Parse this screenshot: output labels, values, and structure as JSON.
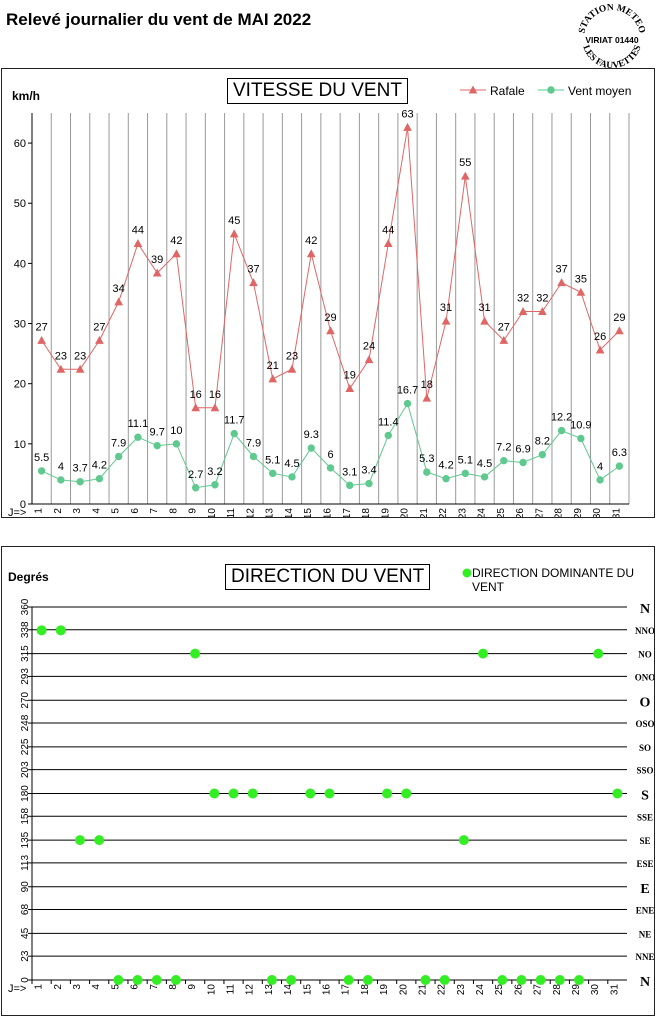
{
  "page_title": "Relevé journalier du vent de MAI 2022",
  "logo": {
    "lines": [
      "STATION METEO",
      "VIRIAT 01440",
      "LES FAUVETTES"
    ]
  },
  "colors": {
    "rafale": "#e06666",
    "moyen": "#5fc98f",
    "direction_point": "#33ee22",
    "grid": "#000000"
  },
  "chart_data": [
    {
      "type": "line",
      "title": "VITESSE DU VENT",
      "ylabel": "km/h",
      "xlabel": "J=>",
      "ylim": [
        0,
        65
      ],
      "yticks": [
        0,
        10,
        20,
        30,
        40,
        50,
        60
      ],
      "legend_placement": "top-right",
      "grid": "vertical",
      "categories": [
        "1",
        "2",
        "3",
        "4",
        "5",
        "6",
        "7",
        "8",
        "9",
        "10",
        "11",
        "12",
        "13",
        "14",
        "15",
        "16",
        "17",
        "18",
        "19",
        "20",
        "21",
        "22",
        "23",
        "24",
        "25",
        "26",
        "27",
        "28",
        "29",
        "30",
        "31"
      ],
      "series": [
        {
          "name": "Rafale",
          "marker": "triangle",
          "values": [
            27,
            23,
            23,
            27,
            34,
            44,
            39,
            42,
            16,
            16,
            45,
            37,
            21,
            23,
            42,
            29,
            19,
            24,
            44,
            63,
            18,
            31,
            55,
            31,
            27,
            32,
            32,
            37,
            35,
            26,
            29
          ],
          "plotted": [
            27.2,
            22.4,
            22.4,
            27.2,
            33.6,
            43.3,
            38.4,
            41.6,
            16.0,
            16.0,
            44.9,
            36.8,
            20.8,
            22.4,
            41.6,
            28.8,
            19.2,
            24.0,
            43.3,
            62.6,
            17.6,
            30.4,
            54.5,
            30.4,
            27.2,
            32.0,
            32.0,
            36.8,
            35.2,
            25.6,
            28.8
          ]
        },
        {
          "name": "Vent moyen",
          "marker": "circle",
          "values": [
            5.5,
            4,
            3.7,
            4.2,
            7.9,
            11.1,
            9.7,
            10,
            2.7,
            3.2,
            11.7,
            7.9,
            5.1,
            4.5,
            9.3,
            6,
            3.1,
            3.4,
            11.4,
            16.7,
            5.3,
            4.2,
            5.1,
            4.5,
            7.2,
            6.9,
            8.2,
            12.2,
            10.9,
            4,
            6.3
          ],
          "labels": [
            "5.5",
            "4",
            "3.7",
            "4.2",
            "7.9",
            "11.1",
            "9.7",
            "10",
            "2.7",
            "3.2",
            "11.7",
            "7.9",
            "5.1",
            "4.5",
            "9.3",
            "6",
            "3.1",
            "3.4",
            "11.4",
            "16.7",
            "5.3",
            "4.2",
            "5.1",
            "4.5",
            "7.2",
            "6.9",
            "8.2",
            "12.2",
            "10.9",
            "4",
            "6.3"
          ]
        }
      ]
    },
    {
      "type": "scatter",
      "title": "DIRECTION DU VENT",
      "ylabel": "Degrés",
      "xlabel": "J=>",
      "ylim": [
        0,
        360
      ],
      "legend_placement": "top-right",
      "grid": "horizontal",
      "categories": [
        "1",
        "2",
        "3",
        "4",
        "5",
        "6",
        "7",
        "8",
        "9",
        "10",
        "11",
        "12",
        "13",
        "14",
        "15",
        "16",
        "17",
        "18",
        "19",
        "20",
        "21",
        "22",
        "23",
        "24",
        "25",
        "26",
        "27",
        "28",
        "29",
        "30",
        "31"
      ],
      "yticks": [
        0,
        23,
        45,
        68,
        90,
        113,
        135,
        158,
        180,
        203,
        225,
        248,
        270,
        293,
        315,
        338,
        360
      ],
      "compass_labels": [
        "N",
        "NNE",
        "NE",
        "ENE",
        "E",
        "ESE",
        "SE",
        "SSE",
        "S",
        "SSO",
        "SO",
        "OSO",
        "O",
        "ONO",
        "NO",
        "NNO",
        "N"
      ],
      "series": [
        {
          "name": "DIRECTION DOMINANTE DU VENT",
          "marker": "circle",
          "values": [
            337.5,
            337.5,
            135,
            135,
            0,
            0,
            0,
            0,
            315,
            180,
            180,
            180,
            0,
            0,
            180,
            180,
            0,
            0,
            180,
            180,
            0,
            0,
            135,
            315,
            0,
            0,
            0,
            0,
            0,
            315,
            180
          ]
        }
      ]
    }
  ]
}
